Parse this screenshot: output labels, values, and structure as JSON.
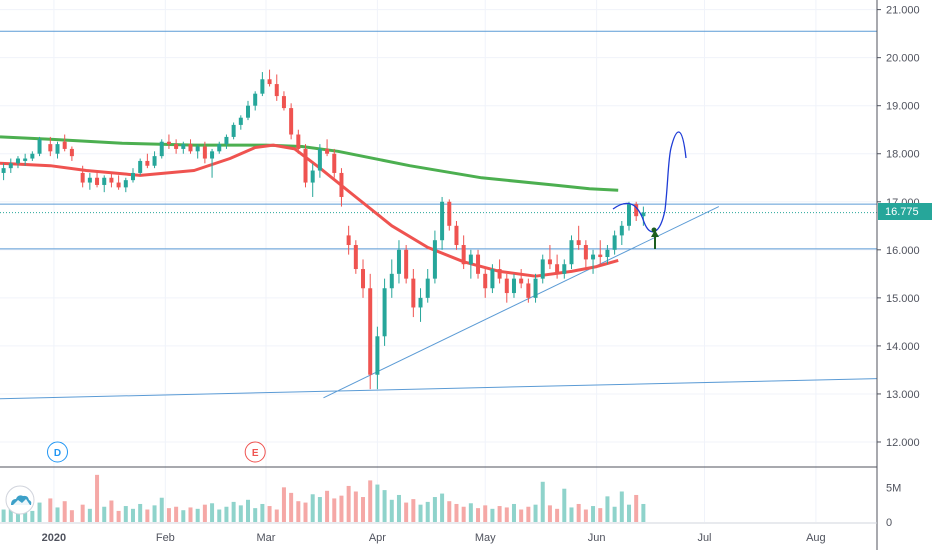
{
  "chart_data": {
    "type": "candlestick",
    "title": "",
    "y_axis": {
      "ticks": [
        "21.000",
        "20.000",
        "19.000",
        "18.000",
        "17.000",
        "16.000",
        "15.000",
        "14.000",
        "13.000",
        "12.000"
      ],
      "tick_values": [
        21,
        20,
        19,
        18,
        17,
        16,
        15,
        14,
        13,
        12
      ],
      "ylim": [
        11.5,
        21.2
      ]
    },
    "x_axis": {
      "labels": [
        "2020",
        "Feb",
        "Mar",
        "Apr",
        "May",
        "Jun",
        "Jul",
        "Aug"
      ],
      "label_days": [
        1,
        32,
        60,
        91,
        121,
        152,
        182,
        213
      ],
      "xlim": [
        -14,
        230
      ]
    },
    "last_price": "16.775",
    "last_price_value": 16.775,
    "colors": {
      "up": "#26a69a",
      "down": "#ef5350",
      "ema_short": "#ef5350",
      "ema_long": "#4caf50",
      "drawing": "#5b9bd5",
      "arrow": "#1b5e20",
      "prediction": "#1e3cd6"
    },
    "event_markers": [
      {
        "label": "D",
        "day": 2,
        "color": "#2196f3"
      },
      {
        "label": "E",
        "day": 57,
        "color": "#ef5350"
      }
    ],
    "horizontal_levels": [
      20.55,
      16.95,
      16.02
    ],
    "dotted_level": 16.775,
    "trendlines": [
      {
        "from": [
          -14,
          12.9
        ],
        "to": [
          230,
          13.32
        ]
      },
      {
        "from": [
          76,
          12.92
        ],
        "to": [
          186,
          16.9
        ]
      }
    ],
    "moving_averages": [
      {
        "color": "ema_long",
        "points": [
          [
            -14,
            18.35
          ],
          [
            0,
            18.3
          ],
          [
            20,
            18.22
          ],
          [
            40,
            18.18
          ],
          [
            60,
            18.18
          ],
          [
            70,
            18.15
          ],
          [
            80,
            18.05
          ],
          [
            100,
            17.75
          ],
          [
            120,
            17.5
          ],
          [
            140,
            17.35
          ],
          [
            150,
            17.27
          ],
          [
            158,
            17.24
          ]
        ]
      },
      {
        "color": "ema_short",
        "points": [
          [
            -14,
            17.8
          ],
          [
            0,
            17.75
          ],
          [
            10,
            17.65
          ],
          [
            25,
            17.55
          ],
          [
            40,
            17.65
          ],
          [
            50,
            17.9
          ],
          [
            57,
            18.13
          ],
          [
            62,
            18.18
          ],
          [
            68,
            18.1
          ],
          [
            75,
            17.7
          ],
          [
            85,
            17.1
          ],
          [
            95,
            16.5
          ],
          [
            105,
            16.05
          ],
          [
            115,
            15.75
          ],
          [
            125,
            15.55
          ],
          [
            135,
            15.45
          ],
          [
            145,
            15.55
          ],
          [
            152,
            15.65
          ],
          [
            158,
            15.78
          ]
        ]
      }
    ],
    "candles": [
      [
        -13,
        17.6,
        17.8,
        17.45,
        17.7
      ],
      [
        -11,
        17.7,
        17.9,
        17.6,
        17.8
      ],
      [
        -9,
        17.8,
        17.95,
        17.7,
        17.9
      ],
      [
        -7,
        17.85,
        18.0,
        17.75,
        17.9
      ],
      [
        -5,
        17.9,
        18.05,
        17.85,
        18.0
      ],
      [
        -3,
        18.0,
        18.35,
        17.95,
        18.3
      ],
      [
        0,
        18.2,
        18.35,
        17.95,
        18.05
      ],
      [
        2,
        18.0,
        18.25,
        17.9,
        18.2
      ],
      [
        4,
        18.25,
        18.4,
        18.05,
        18.1
      ],
      [
        6,
        18.1,
        18.15,
        17.85,
        17.95
      ],
      [
        9,
        17.6,
        17.75,
        17.3,
        17.4
      ],
      [
        11,
        17.4,
        17.6,
        17.25,
        17.5
      ],
      [
        13,
        17.5,
        17.65,
        17.3,
        17.35
      ],
      [
        15,
        17.35,
        17.55,
        17.2,
        17.5
      ],
      [
        17,
        17.5,
        17.6,
        17.3,
        17.4
      ],
      [
        19,
        17.4,
        17.55,
        17.25,
        17.3
      ],
      [
        21,
        17.3,
        17.5,
        17.2,
        17.45
      ],
      [
        23,
        17.45,
        17.7,
        17.4,
        17.6
      ],
      [
        25,
        17.6,
        17.9,
        17.55,
        17.85
      ],
      [
        27,
        17.85,
        18.0,
        17.7,
        17.75
      ],
      [
        29,
        17.75,
        18.05,
        17.7,
        17.95
      ],
      [
        31,
        17.95,
        18.3,
        17.9,
        18.25
      ],
      [
        33,
        18.25,
        18.4,
        18.1,
        18.2
      ],
      [
        35,
        18.2,
        18.3,
        18.0,
        18.1
      ],
      [
        37,
        18.1,
        18.25,
        18.0,
        18.2
      ],
      [
        39,
        18.2,
        18.3,
        18.0,
        18.05
      ],
      [
        41,
        18.05,
        18.2,
        17.9,
        18.15
      ],
      [
        43,
        18.15,
        18.25,
        17.8,
        17.9
      ],
      [
        45,
        17.9,
        18.1,
        17.5,
        18.05
      ],
      [
        47,
        18.05,
        18.25,
        18.0,
        18.2
      ],
      [
        49,
        18.2,
        18.4,
        18.1,
        18.35
      ],
      [
        51,
        18.35,
        18.65,
        18.3,
        18.6
      ],
      [
        53,
        18.6,
        18.8,
        18.5,
        18.75
      ],
      [
        55,
        18.75,
        19.1,
        18.7,
        19.0
      ],
      [
        57,
        19.0,
        19.3,
        18.9,
        19.25
      ],
      [
        59,
        19.25,
        19.7,
        19.2,
        19.55
      ],
      [
        61,
        19.55,
        19.75,
        19.4,
        19.45
      ],
      [
        63,
        19.45,
        19.65,
        19.1,
        19.2
      ],
      [
        65,
        19.2,
        19.3,
        18.9,
        18.95
      ],
      [
        67,
        18.95,
        19.05,
        18.3,
        18.4
      ],
      [
        69,
        18.4,
        18.5,
        18.0,
        18.1
      ],
      [
        71,
        18.1,
        18.2,
        17.3,
        17.4
      ],
      [
        73,
        17.4,
        17.8,
        17.1,
        17.65
      ],
      [
        75,
        17.65,
        18.2,
        17.5,
        18.1
      ],
      [
        77,
        18.1,
        18.3,
        17.95,
        18.0
      ],
      [
        79,
        18.0,
        18.1,
        17.5,
        17.6
      ],
      [
        81,
        17.6,
        17.7,
        16.9,
        17.1
      ],
      [
        83,
        16.3,
        16.5,
        15.9,
        16.1
      ],
      [
        85,
        16.1,
        16.2,
        15.5,
        15.6
      ],
      [
        87,
        15.6,
        15.8,
        15.0,
        15.2
      ],
      [
        89,
        15.2,
        15.5,
        13.1,
        13.4
      ],
      [
        91,
        13.4,
        14.4,
        13.1,
        14.2
      ],
      [
        93,
        14.2,
        15.4,
        14.0,
        15.2
      ],
      [
        95,
        15.2,
        15.8,
        15.0,
        15.5
      ],
      [
        97,
        15.5,
        16.2,
        15.3,
        16.0
      ],
      [
        99,
        16.0,
        16.1,
        15.3,
        15.4
      ],
      [
        101,
        15.4,
        15.6,
        14.6,
        14.8
      ],
      [
        103,
        14.8,
        15.2,
        14.5,
        15.0
      ],
      [
        105,
        15.0,
        15.6,
        14.9,
        15.4
      ],
      [
        107,
        15.4,
        16.4,
        15.3,
        16.2
      ],
      [
        109,
        16.2,
        17.1,
        16.0,
        17.0
      ],
      [
        111,
        17.0,
        17.05,
        16.4,
        16.5
      ],
      [
        113,
        16.5,
        16.6,
        16.0,
        16.1
      ],
      [
        115,
        16.1,
        16.3,
        15.6,
        15.7
      ],
      [
        117,
        15.7,
        16.0,
        15.4,
        15.9
      ],
      [
        119,
        15.9,
        16.0,
        15.4,
        15.5
      ],
      [
        121,
        15.5,
        15.6,
        15.0,
        15.2
      ],
      [
        123,
        15.2,
        15.7,
        15.1,
        15.6
      ],
      [
        125,
        15.6,
        15.8,
        15.3,
        15.4
      ],
      [
        127,
        15.4,
        15.5,
        14.9,
        15.1
      ],
      [
        129,
        15.1,
        15.5,
        15.0,
        15.4
      ],
      [
        131,
        15.4,
        15.6,
        15.2,
        15.3
      ],
      [
        133,
        15.3,
        15.4,
        14.9,
        15.0
      ],
      [
        135,
        15.0,
        15.5,
        14.9,
        15.4
      ],
      [
        137,
        15.4,
        15.9,
        15.3,
        15.8
      ],
      [
        139,
        15.8,
        16.1,
        15.6,
        15.7
      ],
      [
        141,
        15.7,
        15.9,
        15.4,
        15.5
      ],
      [
        143,
        15.5,
        15.8,
        15.4,
        15.7
      ],
      [
        145,
        15.7,
        16.3,
        15.6,
        16.2
      ],
      [
        147,
        16.2,
        16.5,
        16.0,
        16.1
      ],
      [
        149,
        16.1,
        16.2,
        15.6,
        15.8
      ],
      [
        151,
        15.8,
        16.0,
        15.5,
        15.9
      ],
      [
        153,
        15.9,
        16.2,
        15.7,
        15.85
      ],
      [
        155,
        15.85,
        16.1,
        15.7,
        16.0
      ],
      [
        157,
        16.0,
        16.4,
        15.9,
        16.3
      ],
      [
        159,
        16.3,
        16.6,
        16.1,
        16.5
      ],
      [
        161,
        16.5,
        17.0,
        16.4,
        16.95
      ],
      [
        163,
        16.95,
        17.0,
        16.6,
        16.7
      ],
      [
        165,
        16.7,
        16.9,
        16.5,
        16.775
      ]
    ],
    "volume_axis": {
      "ticks": [
        "5M",
        "0"
      ],
      "tick_values": [
        5,
        0
      ],
      "ylim": [
        0,
        7.5
      ]
    },
    "volumes": [
      [
        -13,
        1.8
      ],
      [
        -11,
        2.0
      ],
      [
        -9,
        1.5
      ],
      [
        -7,
        2.4
      ],
      [
        -5,
        1.6
      ],
      [
        -3,
        2.8
      ],
      [
        0,
        3.4
      ],
      [
        2,
        2.1
      ],
      [
        4,
        3.0
      ],
      [
        6,
        1.7
      ],
      [
        9,
        2.5
      ],
      [
        11,
        1.9
      ],
      [
        13,
        6.8
      ],
      [
        15,
        2.2
      ],
      [
        17,
        3.1
      ],
      [
        19,
        1.6
      ],
      [
        21,
        2.3
      ],
      [
        23,
        1.9
      ],
      [
        25,
        2.6
      ],
      [
        27,
        1.8
      ],
      [
        29,
        2.4
      ],
      [
        31,
        3.5
      ],
      [
        33,
        2.0
      ],
      [
        35,
        2.2
      ],
      [
        37,
        1.7
      ],
      [
        39,
        2.1
      ],
      [
        41,
        1.9
      ],
      [
        43,
        2.5
      ],
      [
        45,
        2.7
      ],
      [
        47,
        1.8
      ],
      [
        49,
        2.2
      ],
      [
        51,
        2.9
      ],
      [
        53,
        2.4
      ],
      [
        55,
        3.2
      ],
      [
        57,
        2.0
      ],
      [
        59,
        2.6
      ],
      [
        61,
        2.3
      ],
      [
        63,
        1.8
      ],
      [
        65,
        5.0
      ],
      [
        67,
        4.2
      ],
      [
        69,
        3.0
      ],
      [
        71,
        2.8
      ],
      [
        73,
        4.0
      ],
      [
        75,
        3.6
      ],
      [
        77,
        4.5
      ],
      [
        79,
        3.4
      ],
      [
        81,
        3.8
      ],
      [
        83,
        5.2
      ],
      [
        85,
        4.4
      ],
      [
        87,
        3.6
      ],
      [
        89,
        6.0
      ],
      [
        91,
        5.4
      ],
      [
        93,
        4.6
      ],
      [
        95,
        3.2
      ],
      [
        97,
        3.9
      ],
      [
        99,
        2.8
      ],
      [
        101,
        3.3
      ],
      [
        103,
        2.5
      ],
      [
        105,
        2.9
      ],
      [
        107,
        3.6
      ],
      [
        109,
        4.1
      ],
      [
        111,
        3.0
      ],
      [
        113,
        2.6
      ],
      [
        115,
        2.2
      ],
      [
        117,
        2.7
      ],
      [
        119,
        2.0
      ],
      [
        121,
        2.4
      ],
      [
        123,
        1.9
      ],
      [
        125,
        2.3
      ],
      [
        127,
        2.1
      ],
      [
        129,
        2.6
      ],
      [
        131,
        1.8
      ],
      [
        133,
        2.2
      ],
      [
        135,
        2.5
      ],
      [
        137,
        5.8
      ],
      [
        139,
        2.4
      ],
      [
        141,
        1.9
      ],
      [
        143,
        4.8
      ],
      [
        145,
        2.1
      ],
      [
        147,
        2.6
      ],
      [
        149,
        1.8
      ],
      [
        151,
        2.3
      ],
      [
        153,
        2.0
      ],
      [
        155,
        3.7
      ],
      [
        157,
        2.2
      ],
      [
        159,
        4.4
      ],
      [
        161,
        2.5
      ],
      [
        163,
        3.9
      ],
      [
        165,
        2.6
      ]
    ]
  }
}
